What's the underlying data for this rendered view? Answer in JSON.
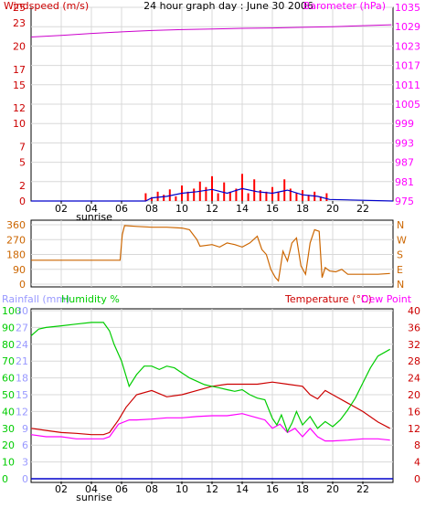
{
  "chart_data": [
    {
      "type": "line",
      "title": "24 hour graph day : June 30 2006",
      "left_axis_label": "Windspeed (m/s)",
      "right_axis_label": "Barometer (hPa)",
      "x_ticks": [
        "02",
        "04",
        "06",
        "08",
        "10",
        "12",
        "14",
        "16",
        "18",
        "20",
        "22"
      ],
      "sunrise_label": "sunrise",
      "left_ticks": [
        0,
        2,
        5,
        7,
        10,
        12,
        15,
        17,
        20,
        23,
        25
      ],
      "left_ylim": [
        0,
        25
      ],
      "right_ticks": [
        975,
        981,
        987,
        993,
        999,
        1005,
        1011,
        1017,
        1023,
        1029,
        1035
      ],
      "right_ylim": [
        975,
        1035
      ],
      "colors": {
        "wind": "#ff0000",
        "wind_avg": "#0000cc",
        "barometer": "#cc00cc",
        "left_axis": "#cc0000",
        "right_axis": "#ff00ff"
      },
      "series": [
        {
          "name": "Barometer",
          "axis": "right",
          "x": [
            0,
            2,
            4,
            6,
            8,
            10,
            12,
            14,
            16,
            18,
            20,
            22,
            23.9
          ],
          "values": [
            1025.8,
            1026.3,
            1026.9,
            1027.4,
            1027.8,
            1028.1,
            1028.3,
            1028.5,
            1028.6,
            1028.8,
            1029.0,
            1029.3,
            1029.6
          ]
        },
        {
          "name": "Windspeed",
          "axis": "left",
          "x": [
            7.6,
            8.0,
            8.4,
            8.8,
            9.2,
            9.6,
            10.0,
            10.4,
            10.8,
            11.2,
            11.6,
            12.0,
            12.4,
            12.8,
            13.2,
            13.6,
            14.0,
            14.4,
            14.8,
            15.2,
            15.6,
            16.0,
            16.4,
            16.8,
            17.2,
            17.6,
            18.0,
            18.4,
            18.8,
            19.2,
            19.6
          ],
          "values": [
            1.0,
            0.5,
            1.2,
            0.8,
            1.5,
            0.6,
            2.0,
            1.2,
            1.6,
            2.5,
            1.8,
            3.2,
            1.0,
            2.4,
            1.2,
            1.6,
            3.5,
            1.0,
            2.8,
            1.4,
            1.2,
            1.8,
            1.2,
            2.8,
            1.6,
            1.0,
            1.4,
            0.8,
            1.2,
            0.6,
            1.0
          ]
        },
        {
          "name": "Wind average",
          "axis": "left",
          "x": [
            0,
            7.6,
            8,
            9,
            10,
            11,
            12,
            13,
            14,
            15,
            16,
            17,
            18,
            19,
            19.8,
            24
          ],
          "values": [
            0,
            0,
            0.4,
            0.6,
            1.0,
            1.2,
            1.5,
            1.0,
            1.6,
            1.2,
            1.0,
            1.4,
            0.8,
            0.6,
            0.2,
            0
          ]
        }
      ]
    },
    {
      "type": "line",
      "ylim": [
        0,
        360
      ],
      "left_ticks": [
        0,
        90,
        180,
        270,
        360
      ],
      "right_labels": [
        "N",
        "W",
        "S",
        "E",
        "N"
      ],
      "x_ticks": [
        "02",
        "04",
        "06",
        "08",
        "10",
        "12",
        "14",
        "16",
        "18",
        "20",
        "22"
      ],
      "colors": {
        "direction": "#cc6600"
      },
      "series": [
        {
          "name": "Wind direction",
          "x": [
            0,
            2,
            4,
            5.9,
            6.05,
            6.2,
            7,
            8,
            9,
            10,
            10.5,
            11,
            11.2,
            12,
            12.5,
            13,
            13.5,
            14,
            14.5,
            15,
            15.3,
            15.6,
            15.9,
            16.2,
            16.4,
            16.7,
            17,
            17.3,
            17.6,
            17.9,
            18.2,
            18.5,
            18.8,
            19.1,
            19.3,
            19.5,
            19.8,
            20.2,
            20.6,
            21,
            22,
            23,
            23.8
          ],
          "values": [
            145,
            145,
            145,
            145,
            300,
            355,
            350,
            345,
            345,
            340,
            330,
            270,
            230,
            240,
            225,
            250,
            240,
            225,
            250,
            290,
            210,
            180,
            90,
            40,
            20,
            200,
            140,
            250,
            280,
            110,
            60,
            250,
            330,
            320,
            40,
            100,
            80,
            75,
            90,
            60,
            60,
            60,
            65
          ]
        }
      ]
    },
    {
      "type": "line",
      "left_axis_label_1": "Rainfall (mm)",
      "left_axis_label_2": "Humidity %",
      "right_axis_label_1": "Temperature (°C)",
      "right_axis_label_2": "Dew Point",
      "x_ticks": [
        "02",
        "04",
        "06",
        "08",
        "10",
        "12",
        "14",
        "16",
        "18",
        "20",
        "22"
      ],
      "sunrise_label": "sunrise",
      "rain_ticks": [
        0,
        3,
        6,
        9,
        12,
        15,
        18,
        21,
        24,
        27,
        30
      ],
      "humidity_ticks": [
        0,
        10,
        20,
        30,
        40,
        50,
        60,
        70,
        80,
        90,
        100
      ],
      "temp_ticks": [
        0,
        4,
        8,
        12,
        16,
        20,
        24,
        28,
        32,
        36,
        40
      ],
      "rain_ylim": [
        0,
        30
      ],
      "humidity_ylim": [
        0,
        100
      ],
      "temp_ylim": [
        0,
        40
      ],
      "colors": {
        "humidity": "#00cc00",
        "temperature": "#cc0000",
        "dew_point": "#ff00ff",
        "rainfall": "#0000cc"
      },
      "series": [
        {
          "name": "Humidity",
          "axis": "humidity",
          "x": [
            0,
            0.5,
            1,
            2,
            3,
            4,
            4.8,
            5.2,
            5.5,
            6,
            6.5,
            7,
            7.5,
            8,
            8.5,
            9,
            9.5,
            10,
            10.5,
            11,
            11.5,
            12,
            12.5,
            13,
            13.5,
            14,
            14.5,
            15,
            15.5,
            16,
            16.3,
            16.6,
            17,
            17.3,
            17.6,
            18,
            18.5,
            19,
            19.5,
            20,
            20.5,
            21,
            21.5,
            22,
            22.5,
            23,
            23.8
          ],
          "values": [
            85,
            89,
            90,
            91,
            92,
            93,
            93,
            88,
            80,
            70,
            55,
            62,
            67,
            67,
            65,
            67,
            66,
            63,
            60,
            58,
            56,
            55,
            54,
            53,
            52,
            53,
            50,
            48,
            47,
            36,
            32,
            38,
            28,
            33,
            40,
            32,
            37,
            30,
            34,
            31,
            35,
            41,
            48,
            57,
            66,
            73,
            77
          ]
        },
        {
          "name": "Temperature",
          "axis": "temp",
          "x": [
            0,
            1,
            2,
            3,
            4,
            4.8,
            5.2,
            5.8,
            6.3,
            7,
            8,
            9,
            10,
            11,
            12,
            13,
            14,
            15,
            16,
            17,
            18,
            18.5,
            19,
            19.5,
            20,
            21,
            22,
            23,
            23.8
          ],
          "values": [
            12,
            11.5,
            11,
            10.8,
            10.5,
            10.5,
            11,
            14,
            17,
            20,
            21,
            19.5,
            20,
            21,
            22,
            22.5,
            22.5,
            22.5,
            23,
            22.5,
            22,
            20,
            19,
            21,
            20,
            18,
            16,
            13.5,
            12
          ]
        },
        {
          "name": "Dew point",
          "axis": "temp",
          "x": [
            0,
            1,
            2,
            3,
            4,
            4.8,
            5.2,
            5.8,
            6.5,
            7,
            8,
            9,
            10,
            11,
            12,
            13,
            14,
            15,
            15.5,
            16,
            16.5,
            17,
            17.5,
            18,
            18.5,
            19,
            19.5,
            20,
            21,
            22,
            23,
            23.8
          ],
          "values": [
            10.5,
            10,
            10,
            9.5,
            9.5,
            9.5,
            10,
            13,
            14,
            14,
            14.2,
            14.5,
            14.5,
            14.8,
            15,
            15,
            15.5,
            14.5,
            14,
            12,
            13,
            11,
            12,
            10,
            12,
            10,
            9,
            9,
            9.2,
            9.5,
            9.5,
            9.2
          ]
        },
        {
          "name": "Rainfall",
          "axis": "rain",
          "x": [
            0,
            24
          ],
          "values": [
            0,
            0
          ]
        }
      ]
    }
  ]
}
